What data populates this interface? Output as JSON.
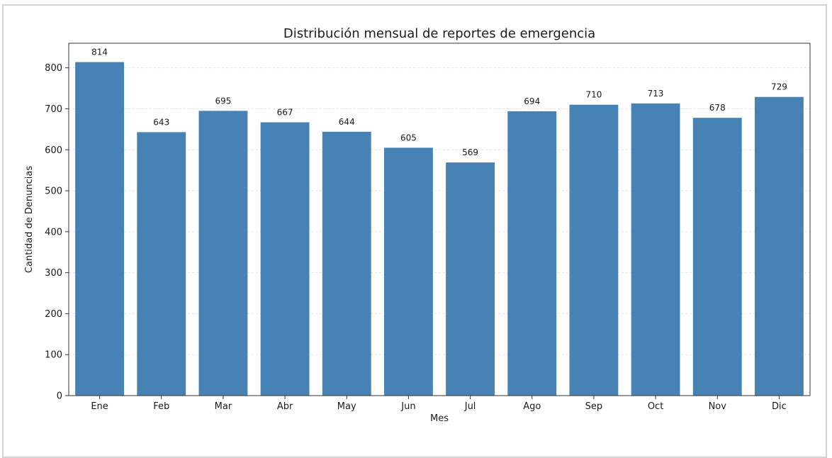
{
  "chart_data": {
    "type": "bar",
    "title": "Distribución mensual de reportes de emergencia",
    "xlabel": "Mes",
    "ylabel": "Cantidad de Denuncias",
    "categories": [
      "Ene",
      "Feb",
      "Mar",
      "Abr",
      "May",
      "Jun",
      "Jul",
      "Ago",
      "Sep",
      "Oct",
      "Nov",
      "Dic"
    ],
    "values": [
      814,
      643,
      695,
      667,
      644,
      605,
      569,
      694,
      710,
      713,
      678,
      729
    ],
    "ylim": [
      0,
      860
    ],
    "yticks": [
      0,
      100,
      200,
      300,
      400,
      500,
      600,
      700,
      800
    ],
    "grid": true,
    "bar_color": "#4682b4"
  }
}
